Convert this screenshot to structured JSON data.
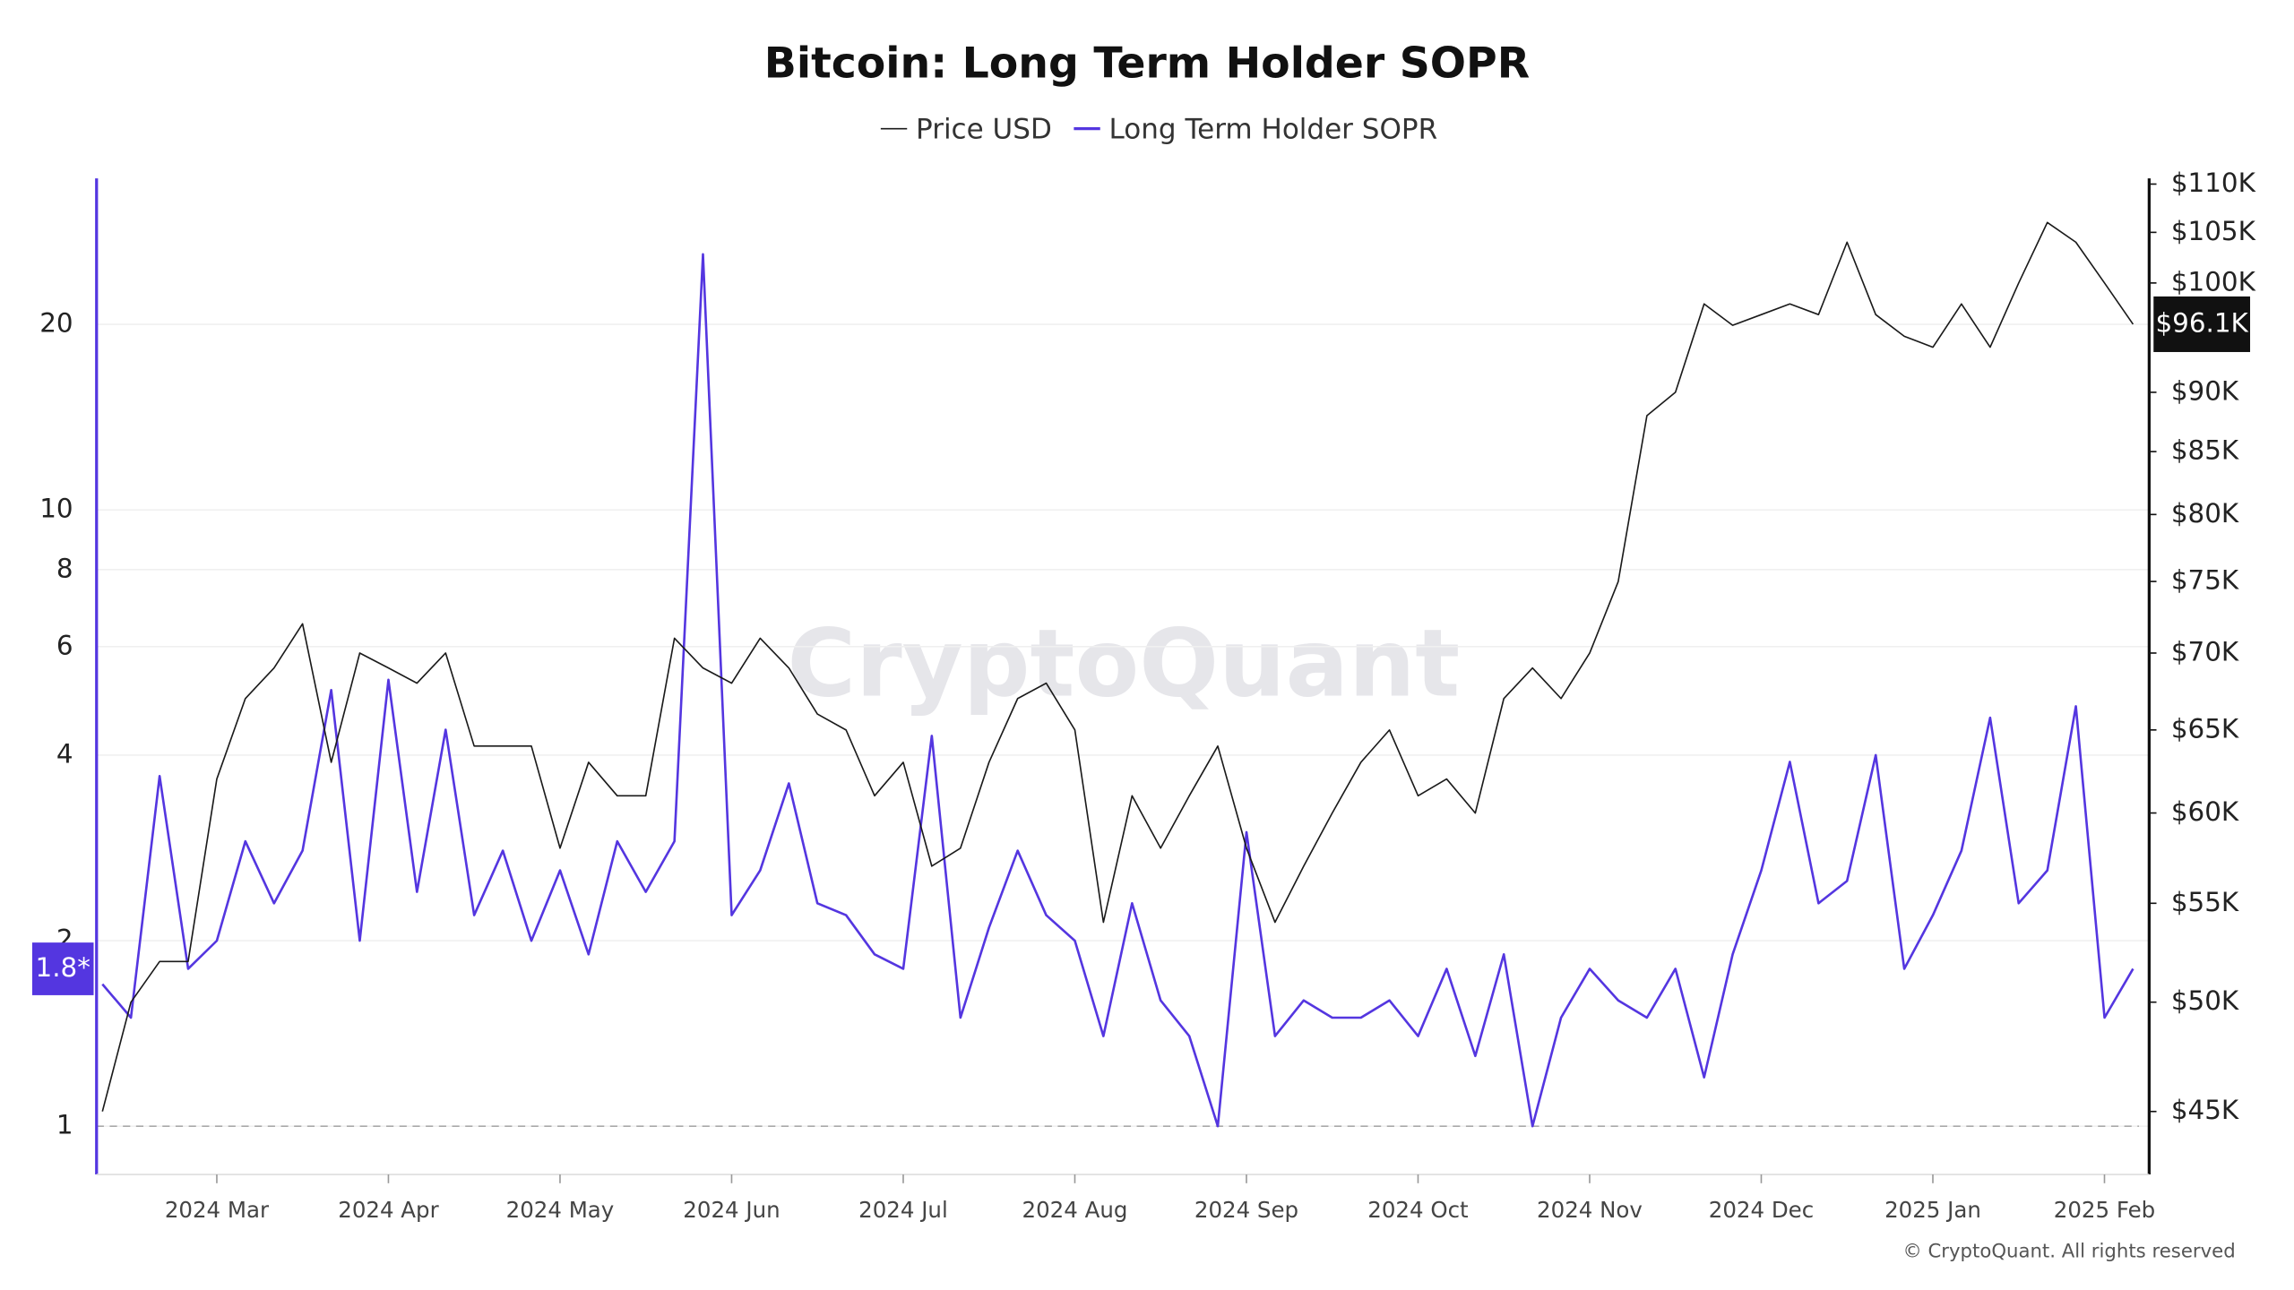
{
  "chart_data": {
    "type": "line",
    "title": "Bitcoin: Long Term Holder SOPR",
    "watermark": "CryptoQuant",
    "footer": "© CryptoQuant. All rights reserved",
    "categories": [
      null,
      null,
      null,
      null,
      "2024 Mar",
      null,
      null,
      null,
      null,
      null,
      "2024 Apr",
      null,
      null,
      null,
      null,
      null,
      "2024 May",
      null,
      null,
      null,
      null,
      null,
      "2024 Jun",
      null,
      null,
      null,
      null,
      null,
      "2024 Jul",
      null,
      null,
      null,
      null,
      null,
      "2024 Aug",
      null,
      null,
      null,
      null,
      null,
      "2024 Sep",
      null,
      null,
      null,
      null,
      null,
      "2024 Oct",
      null,
      null,
      null,
      null,
      null,
      "2024 Nov",
      null,
      null,
      null,
      null,
      null,
      "2024 Dec",
      null,
      null,
      null,
      null,
      null,
      "2025 Jan",
      null,
      null,
      null,
      null,
      null,
      "2025 Feb",
      null
    ],
    "series": [
      {
        "name": "Price USD",
        "color": "#1a1a1a",
        "axis": "y2",
        "values": [
          45000,
          50000,
          52000,
          52000,
          62000,
          67000,
          69000,
          72000,
          63000,
          70000,
          69000,
          68000,
          70000,
          64000,
          64000,
          64000,
          58000,
          63000,
          61000,
          61000,
          71000,
          69000,
          68000,
          71000,
          69000,
          66000,
          65000,
          61000,
          63000,
          57000,
          58000,
          63000,
          67000,
          68000,
          65000,
          54000,
          61000,
          58000,
          61000,
          64000,
          58000,
          54000,
          57000,
          60000,
          63000,
          65000,
          61000,
          62000,
          60000,
          67000,
          69000,
          67000,
          70000,
          75000,
          88000,
          90000,
          98000,
          96000,
          97000,
          98000,
          97000,
          104000,
          97000,
          95000,
          94000,
          98000,
          94000,
          100000,
          106000,
          104000,
          100000,
          96100
        ]
      },
      {
        "name": "Long Term Holder SOPR",
        "color": "#5436e0",
        "axis": "y",
        "values": [
          1.7,
          1.5,
          3.7,
          1.8,
          2.0,
          2.9,
          2.3,
          2.8,
          5.1,
          2.0,
          5.3,
          2.4,
          4.4,
          2.2,
          2.8,
          2.0,
          2.6,
          1.9,
          2.9,
          2.4,
          2.9,
          26,
          2.2,
          2.6,
          3.6,
          2.3,
          2.2,
          1.9,
          1.8,
          4.3,
          1.5,
          2.1,
          2.8,
          2.2,
          2.0,
          1.4,
          2.3,
          1.6,
          1.4,
          1.0,
          3.0,
          1.4,
          1.6,
          1.5,
          1.5,
          1.6,
          1.4,
          1.8,
          1.3,
          1.9,
          1.0,
          1.5,
          1.8,
          1.6,
          1.5,
          1.8,
          1.2,
          1.9,
          2.6,
          3.9,
          2.3,
          2.5,
          4.0,
          1.8,
          2.2,
          2.8,
          4.6,
          2.3,
          2.6,
          4.8,
          1.5,
          1.8
        ]
      }
    ],
    "log_scale": true,
    "ylim": [
      0.835,
      34.5
    ],
    "yticks": [
      1,
      2,
      4,
      6,
      8,
      10,
      20
    ],
    "y2lim": [
      42350,
      110600
    ],
    "y2ticks": [
      {
        "value": 45000,
        "label": "$45K"
      },
      {
        "value": 50000,
        "label": "$50K"
      },
      {
        "value": 55000,
        "label": "$55K"
      },
      {
        "value": 60000,
        "label": "$60K"
      },
      {
        "value": 65000,
        "label": "$65K"
      },
      {
        "value": 70000,
        "label": "$70K"
      },
      {
        "value": 75000,
        "label": "$75K"
      },
      {
        "value": 80000,
        "label": "$80K"
      },
      {
        "value": 85000,
        "label": "$85K"
      },
      {
        "value": 90000,
        "label": "$90K"
      },
      {
        "value": 100000,
        "label": "$100K"
      },
      {
        "value": 105000,
        "label": "$105K"
      },
      {
        "value": 110000,
        "label": "$110K"
      }
    ],
    "reference_line": 1,
    "sopr_marker": {
      "value": 1.8,
      "label": "1.8*"
    },
    "price_marker": {
      "value": 96100,
      "label": "$96.1K"
    },
    "grid": true
  }
}
